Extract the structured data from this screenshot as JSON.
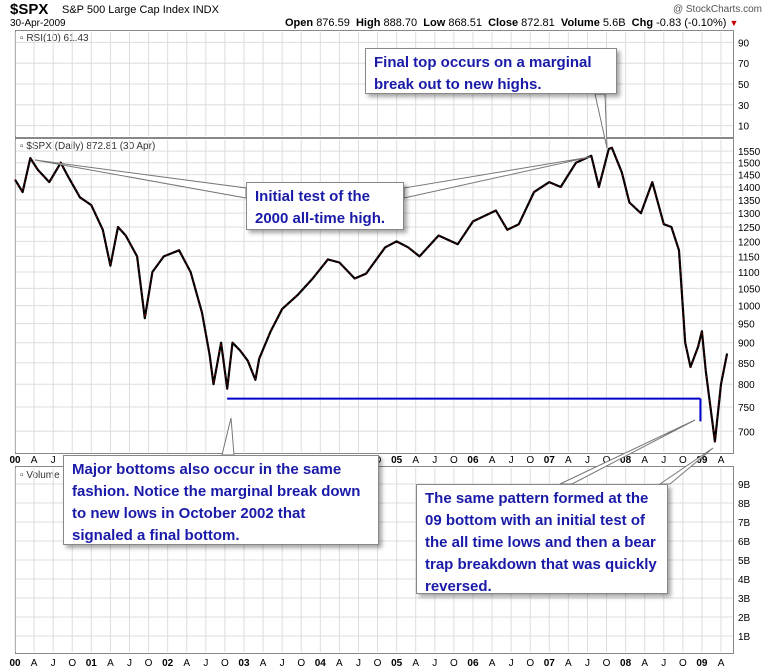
{
  "header": {
    "symbol": "$SPX",
    "name": "S&P 500 Large Cap Index  INDX",
    "date": "30-Apr-2009",
    "watermark": "@ StockCharts.com",
    "quote": {
      "open_label": "Open",
      "open": "876.59",
      "high_label": "High",
      "high": "888.70",
      "low_label": "Low",
      "low": "868.51",
      "close_label": "Close",
      "close": "872.81",
      "volume_label": "Volume",
      "volume": "5.6B",
      "chg_label": "Chg",
      "chg": "-0.83 (-0.10%)"
    }
  },
  "panels": {
    "rsi_label": "RSI(10) 61.43",
    "price_label": "$SPX (Daily) 872.81 (30 Apr)",
    "volume_label": "Volume"
  },
  "annotations": {
    "final_top": "Final top occurs on a marginal break out to new highs.",
    "initial_test": "Initial test of the 2000 all-time high.",
    "major_bottoms": "Major bottoms also occur in the same fashion. Notice the marginal break down to new lows in October 2002 that signaled a final bottom.",
    "pattern_09": "The same pattern formed at the 09 bottom with an initial test of the all time lows and then a bear trap breakdown that was quickly reversed."
  },
  "colors": {
    "price_line": "#000000",
    "down_ticks": "#cc0000",
    "support_line": "#0000cc",
    "callout_text": "#1a1aa8",
    "grid": "#dddddd"
  },
  "chart_data": [
    {
      "type": "line",
      "title": "RSI(10) 61.43",
      "ylim": [
        0,
        100
      ],
      "y_ticks": [
        "90",
        "70",
        "50",
        "30",
        "10"
      ],
      "grid": true
    },
    {
      "type": "line",
      "title": "$SPX (Daily) 872.81 (30 Apr)",
      "ylim": [
        660,
        1600
      ],
      "y_ticks": [
        "1550",
        "1500",
        "1450",
        "1400",
        "1350",
        "1300",
        "1250",
        "1200",
        "1150",
        "1100",
        "1050",
        "1000",
        "950",
        "900",
        "850",
        "800",
        "750",
        "700"
      ],
      "x_ticks": [
        "00",
        "A",
        "J",
        "O",
        "01",
        "A",
        "J",
        "O",
        "02",
        "A",
        "J",
        "O",
        "03",
        "A",
        "J",
        "O",
        "04",
        "A",
        "J",
        "O",
        "05",
        "A",
        "J",
        "O",
        "06",
        "A",
        "J",
        "O",
        "07",
        "A",
        "J",
        "O",
        "08",
        "A",
        "J",
        "O",
        "09",
        "A"
      ],
      "grid": true,
      "series": [
        {
          "values": [
            [
              2000.0,
              1430
            ],
            [
              2000.1,
              1380
            ],
            [
              2000.2,
              1520
            ],
            [
              2000.3,
              1470
            ],
            [
              2000.45,
              1420
            ],
            [
              2000.6,
              1500
            ],
            [
              2000.7,
              1440
            ],
            [
              2000.85,
              1360
            ],
            [
              2001.0,
              1330
            ],
            [
              2001.15,
              1240
            ],
            [
              2001.25,
              1120
            ],
            [
              2001.35,
              1250
            ],
            [
              2001.45,
              1220
            ],
            [
              2001.6,
              1150
            ],
            [
              2001.7,
              965
            ],
            [
              2001.8,
              1100
            ],
            [
              2001.95,
              1150
            ],
            [
              2002.15,
              1170
            ],
            [
              2002.3,
              1100
            ],
            [
              2002.45,
              980
            ],
            [
              2002.55,
              870
            ],
            [
              2002.6,
              800
            ],
            [
              2002.7,
              900
            ],
            [
              2002.78,
              790
            ],
            [
              2002.85,
              900
            ],
            [
              2002.95,
              880
            ],
            [
              2003.05,
              855
            ],
            [
              2003.15,
              810
            ],
            [
              2003.2,
              860
            ],
            [
              2003.35,
              930
            ],
            [
              2003.5,
              990
            ],
            [
              2003.7,
              1030
            ],
            [
              2003.9,
              1080
            ],
            [
              2004.1,
              1140
            ],
            [
              2004.25,
              1130
            ],
            [
              2004.45,
              1080
            ],
            [
              2004.6,
              1095
            ],
            [
              2004.85,
              1180
            ],
            [
              2005.0,
              1200
            ],
            [
              2005.15,
              1180
            ],
            [
              2005.3,
              1150
            ],
            [
              2005.55,
              1220
            ],
            [
              2005.8,
              1190
            ],
            [
              2006.0,
              1270
            ],
            [
              2006.3,
              1310
            ],
            [
              2006.45,
              1240
            ],
            [
              2006.6,
              1260
            ],
            [
              2006.8,
              1380
            ],
            [
              2007.0,
              1420
            ],
            [
              2007.15,
              1400
            ],
            [
              2007.35,
              1500
            ],
            [
              2007.55,
              1530
            ],
            [
              2007.65,
              1400
            ],
            [
              2007.78,
              1560
            ],
            [
              2007.82,
              1565
            ],
            [
              2007.95,
              1460
            ],
            [
              2008.05,
              1340
            ],
            [
              2008.2,
              1300
            ],
            [
              2008.35,
              1420
            ],
            [
              2008.5,
              1260
            ],
            [
              2008.6,
              1250
            ],
            [
              2008.7,
              1170
            ],
            [
              2008.78,
              900
            ],
            [
              2008.85,
              840
            ],
            [
              2008.95,
              890
            ],
            [
              2009.0,
              930
            ],
            [
              2009.05,
              830
            ],
            [
              2009.17,
              680
            ],
            [
              2009.25,
              800
            ],
            [
              2009.33,
              872.81
            ]
          ]
        }
      ],
      "support_level": 768
    },
    {
      "type": "bar",
      "title": "Volume",
      "y_ticks": [
        "9B",
        "8B",
        "7B",
        "6B",
        "5B",
        "4B",
        "3B",
        "2B",
        "1B"
      ],
      "x_ticks": [
        "00",
        "A",
        "J",
        "O",
        "01",
        "A",
        "J",
        "O",
        "02",
        "A",
        "J",
        "O",
        "03",
        "A",
        "J",
        "O",
        "04",
        "A",
        "J",
        "O",
        "05",
        "A",
        "J",
        "O",
        "06",
        "A",
        "J",
        "O",
        "07",
        "A",
        "J",
        "O",
        "08",
        "A",
        "J",
        "O",
        "09",
        "A"
      ],
      "grid": true
    }
  ]
}
